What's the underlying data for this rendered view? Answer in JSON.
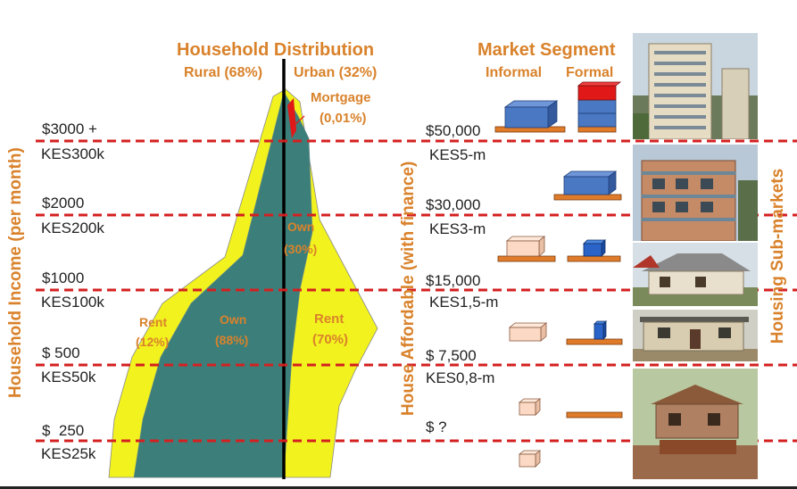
{
  "distribution": {
    "title": "Household Distribution",
    "rural": "Rural (68%)",
    "urban": "Urban (32%)",
    "mortgage": "Mortgage",
    "mortgage_pct": "(0,01%)",
    "own_urban": "Own",
    "own_urban_pct": "(30%)",
    "rent_rural": "Rent",
    "rent_rural_pct": "(12%)",
    "own_rural": "Own",
    "own_rural_pct": "(88%)",
    "rent_urban": "Rent",
    "rent_urban_pct": "(70%)"
  },
  "market": {
    "title": "Market Segment",
    "informal": "Informal",
    "formal": "Formal"
  },
  "axes": {
    "left": "Household Income (per month)",
    "middle": "House Affordable (with finance)",
    "right": "Housing Sub-markets"
  },
  "income_levels": [
    {
      "usd": "$3000 +",
      "kes": "KES300k"
    },
    {
      "usd": "$2000",
      "kes": "KES200k"
    },
    {
      "usd": "$1000",
      "kes": "KES100k"
    },
    {
      "usd": "$ 500",
      "kes": "KES50k"
    },
    {
      "usd": "$  250",
      "kes": "KES25k"
    }
  ],
  "house_values": [
    {
      "usd": "$50,000",
      "kes": "KES5-m"
    },
    {
      "usd": "$30,000",
      "kes": "KES3-m"
    },
    {
      "usd": "$15,000",
      "kes": "KES1,5-m"
    },
    {
      "usd": "$ 7,500",
      "kes": "KES0,8-m"
    },
    {
      "usd": "$ ?",
      "kes": ""
    }
  ],
  "colors": {
    "accent": "#d9822b",
    "dash": "#d42020",
    "yellow": "#f2f21e",
    "teal": "#3c7f7a",
    "blue": "#4a78c2",
    "red": "#e01818",
    "peach": "#fbd9c4"
  }
}
